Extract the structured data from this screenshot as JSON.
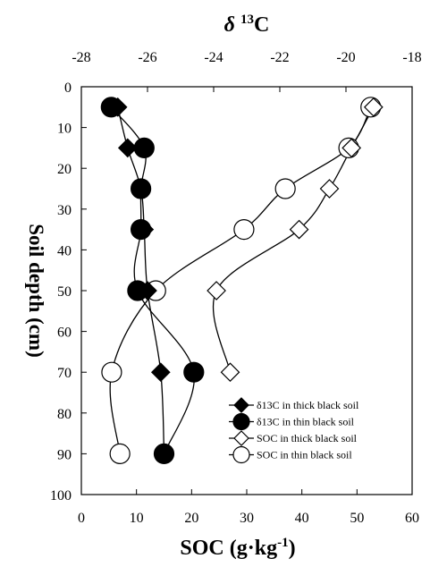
{
  "chart_data": {
    "type": "line",
    "top_axis": {
      "label_prefix": "δ ",
      "label_sup": "13",
      "label_suffix": "C",
      "range": [
        -28,
        -18
      ],
      "ticks": [
        "-28",
        "-26",
        "-24",
        "-22",
        "-20",
        "-18"
      ]
    },
    "bottom_axis": {
      "label_main": "SOC (g·kg",
      "label_sup": "-1",
      "label_end": ")",
      "range": [
        0,
        60
      ],
      "ticks": [
        "0",
        "10",
        "20",
        "30",
        "40",
        "50",
        "60"
      ]
    },
    "y_axis": {
      "label": "Soil depth (cm)",
      "range": [
        0,
        100
      ],
      "inverted": true,
      "ticks": [
        "0",
        "10",
        "20",
        "30",
        "40",
        "50",
        "60",
        "70",
        "80",
        "90",
        "100"
      ]
    },
    "legend_position": "bottom-right",
    "series": [
      {
        "name": "δ13C in thick black soil",
        "axis": "top",
        "marker": "diamond-filled",
        "points": [
          [
            -26.9,
            5
          ],
          [
            -26.6,
            15
          ],
          [
            -26.2,
            25
          ],
          [
            -26.1,
            35
          ],
          [
            -26.0,
            50
          ],
          [
            -25.6,
            70
          ],
          [
            -25.5,
            90
          ]
        ]
      },
      {
        "name": "δ13C in thin black soil",
        "axis": "top",
        "marker": "circle-filled",
        "points": [
          [
            -27.1,
            5
          ],
          [
            -26.1,
            15
          ],
          [
            -26.2,
            25
          ],
          [
            -26.2,
            35
          ],
          [
            -26.3,
            50
          ],
          [
            -24.6,
            70
          ],
          [
            -25.5,
            90
          ]
        ]
      },
      {
        "name": "SOC in thick black soil",
        "axis": "bottom",
        "marker": "diamond-open",
        "points": [
          [
            53,
            5
          ],
          [
            49,
            15
          ],
          [
            45,
            25
          ],
          [
            39.5,
            35
          ],
          [
            24.5,
            50
          ],
          [
            27,
            70
          ]
        ]
      },
      {
        "name": "SOC in thin black soil",
        "axis": "bottom",
        "marker": "circle-open",
        "points": [
          [
            52.5,
            5
          ],
          [
            48.5,
            15
          ],
          [
            37,
            25
          ],
          [
            29.5,
            35
          ],
          [
            13.5,
            50
          ],
          [
            5.5,
            70
          ],
          [
            7,
            90
          ]
        ]
      }
    ]
  }
}
